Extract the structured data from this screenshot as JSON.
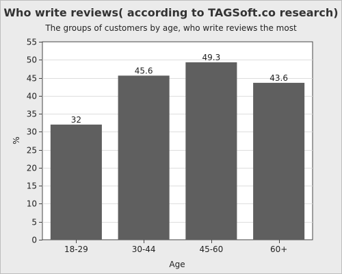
{
  "chart_data": {
    "type": "bar",
    "title": "Who write reviews( according to TAGSoft.co research)",
    "subtitle": "The groups of customers by age, who write reviews the most",
    "xlabel": "Age",
    "ylabel": "%",
    "categories": [
      "18-29",
      "30-44",
      "45-60",
      "60+"
    ],
    "values": [
      32,
      45.6,
      49.3,
      43.6
    ],
    "data_labels": [
      "32",
      "45.6",
      "49.3",
      "43.6"
    ],
    "ylim": [
      0,
      55
    ],
    "yticks": [
      0,
      5,
      10,
      15,
      20,
      25,
      30,
      35,
      40,
      45,
      50,
      55
    ],
    "grid": true,
    "legend": "none",
    "colors": {
      "bar": "#5f5f5f",
      "plot_background": "#ffffff",
      "page_background": "#ebebeb",
      "grid": "#dddddd"
    }
  }
}
